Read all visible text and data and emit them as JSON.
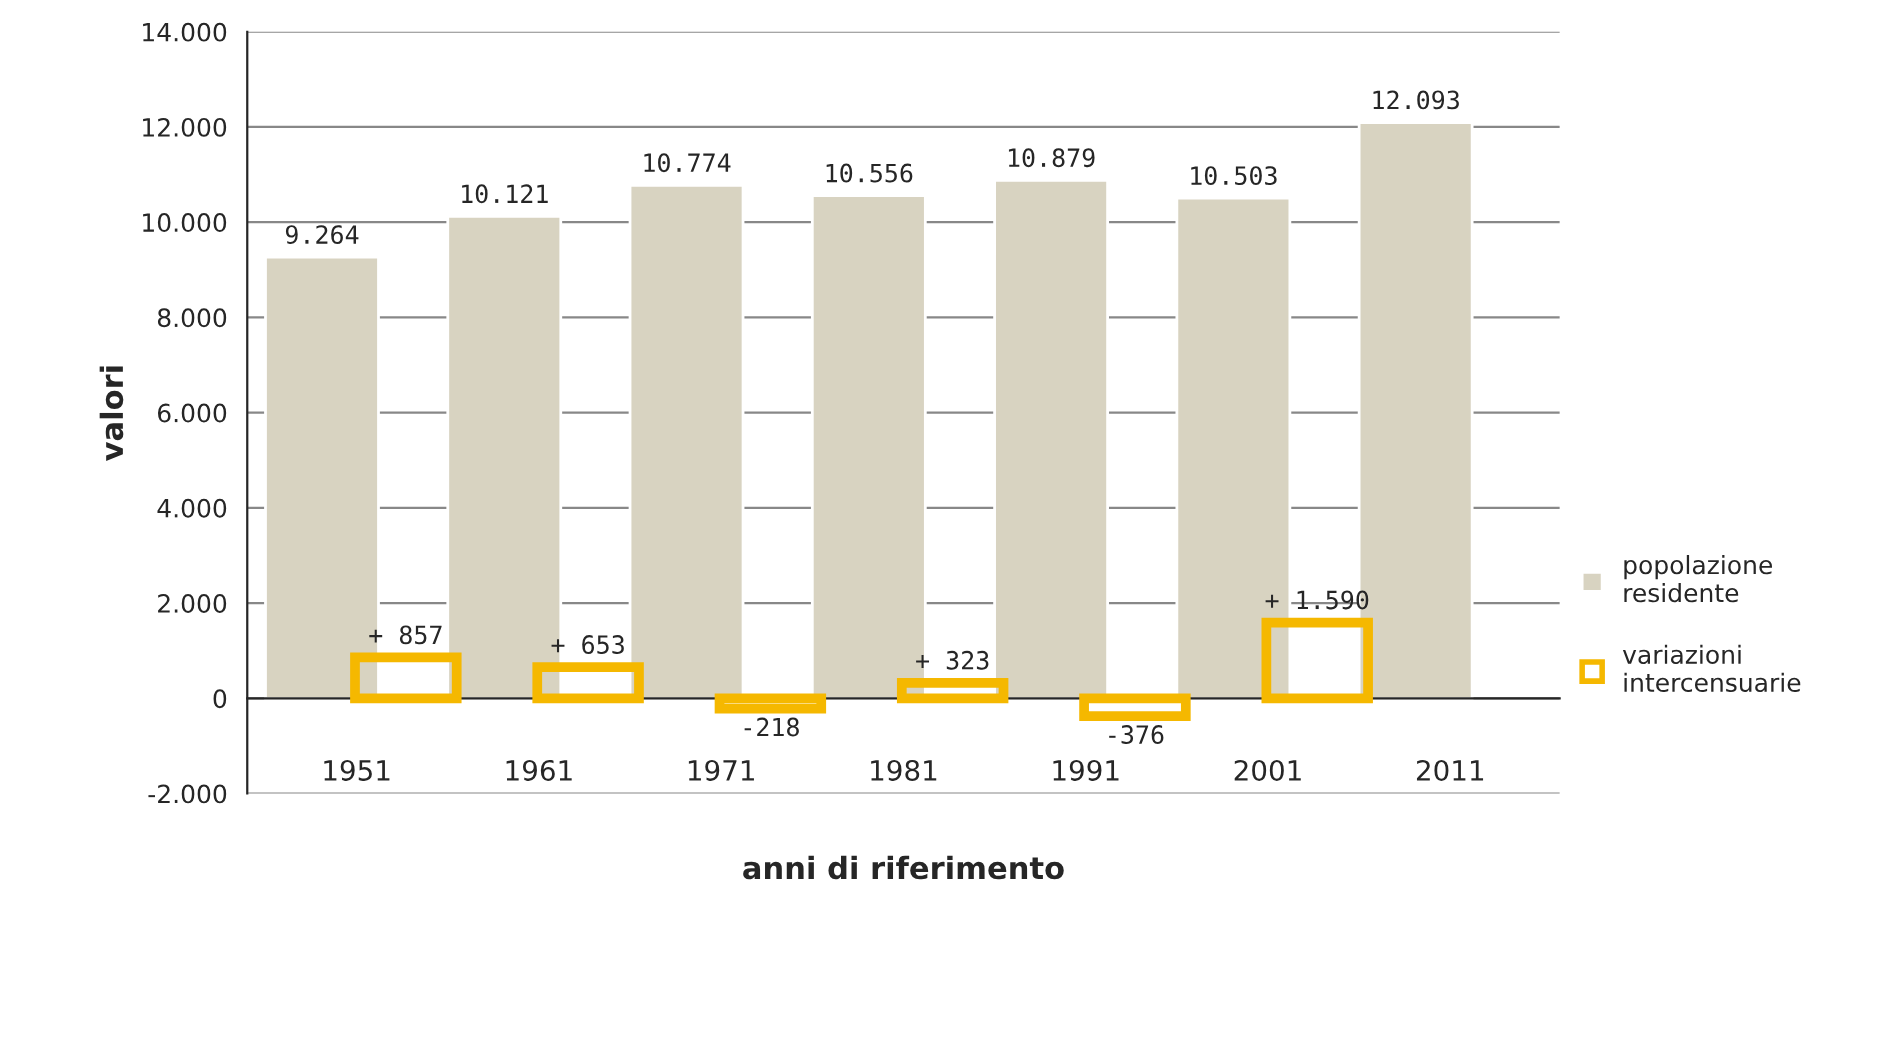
{
  "chart_data": {
    "type": "bar",
    "xlabel": "anni di riferimento",
    "ylabel": "valori",
    "categories": [
      "1951",
      "1961",
      "1971",
      "1981",
      "1991",
      "2001",
      "2011"
    ],
    "series": [
      {
        "name": "popolazione residente",
        "color": "#d8d3c1",
        "values": [
          9264,
          10121,
          10774,
          10556,
          10879,
          10503,
          12093
        ],
        "value_labels": [
          "9.264",
          "10.121",
          "10.774",
          "10.556",
          "10.879",
          "10.503",
          "12.093"
        ]
      },
      {
        "name": "variazioni intercensuarie",
        "color": "#f5b800",
        "values": [
          857,
          653,
          -218,
          323,
          -376,
          1590,
          null
        ],
        "value_labels": [
          "+ 857",
          "+ 653",
          "-218",
          "+ 323",
          "-376",
          "+ 1.590",
          null
        ]
      }
    ],
    "ylim": [
      -2000,
      14000
    ],
    "yticks": [
      {
        "value": -2000,
        "label": "-2.000"
      },
      {
        "value": 0,
        "label": "0"
      },
      {
        "value": 2000,
        "label": "2.000"
      },
      {
        "value": 4000,
        "label": "4.000"
      },
      {
        "value": 6000,
        "label": "6.000"
      },
      {
        "value": 8000,
        "label": "8.000"
      },
      {
        "value": 10000,
        "label": "10.000"
      },
      {
        "value": 12000,
        "label": "12.000"
      },
      {
        "value": 14000,
        "label": "14.000"
      }
    ],
    "grid": "y",
    "legend": "right"
  }
}
